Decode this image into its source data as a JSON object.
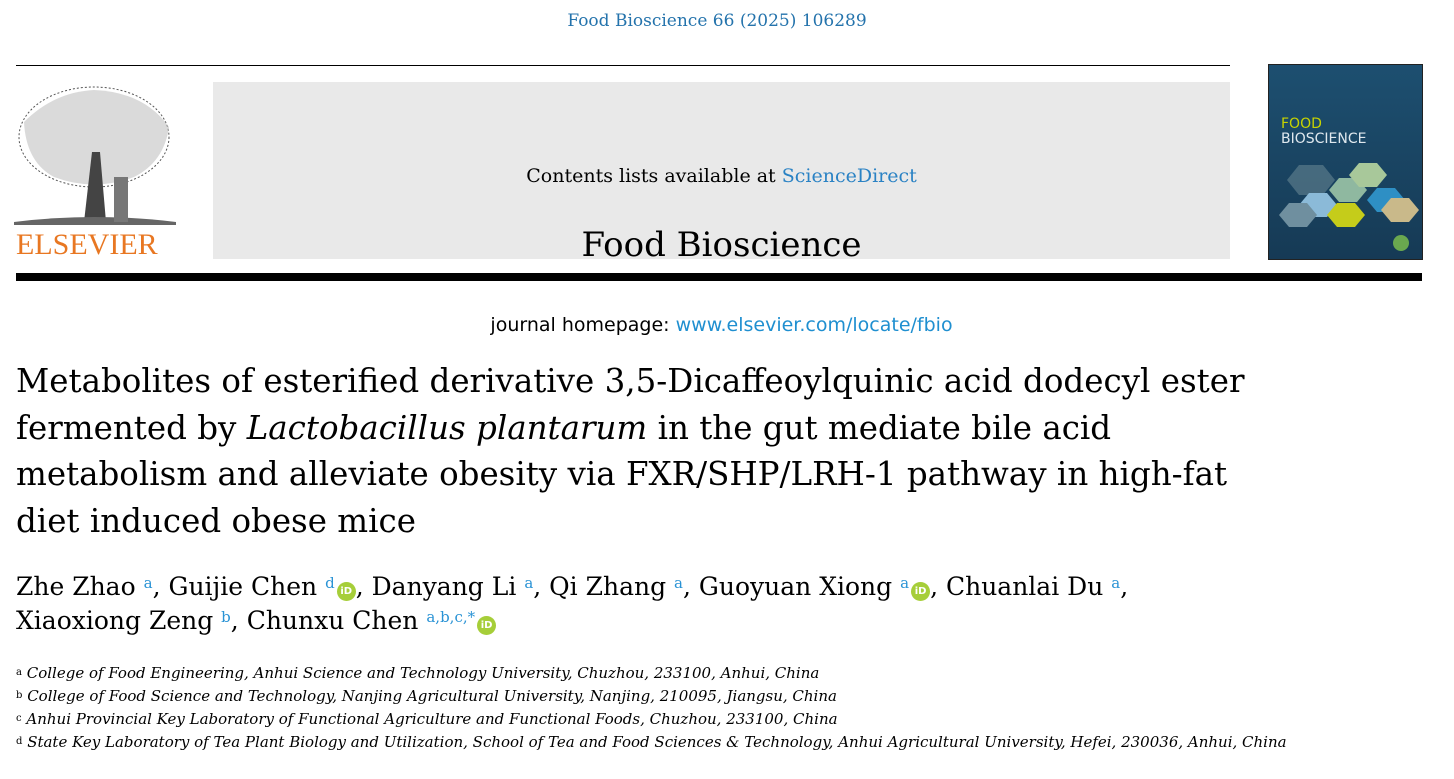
{
  "citation": "Food Bioscience 66 (2025) 106289",
  "header": {
    "contents_prefix": "Contents lists available at ",
    "contents_link": "ScienceDirect",
    "journal_name": "Food Bioscience",
    "homepage_prefix": "journal homepage: ",
    "homepage_link": "www.elsevier.com/locate/fbio",
    "publisher_logo_text": "ELSEVIER",
    "cover": {
      "line1": "FOOD",
      "line2": "BIOSCIENCE"
    }
  },
  "article": {
    "title_parts": [
      "Metabolites of esterified derivative 3,5-Dicaffeoylquinic acid dodecyl ester fermented by ",
      "Lactobacillus plantarum",
      " in the gut mediate bile acid metabolism and alleviate obesity via FXR/SHP/LRH-1 pathway in high-fat diet induced obese mice"
    ],
    "authors": [
      {
        "name": "Zhe Zhao",
        "aff": "a",
        "orcid": false
      },
      {
        "name": "Guijie Chen",
        "aff": "d",
        "orcid": true
      },
      {
        "name": "Danyang Li",
        "aff": "a",
        "orcid": false
      },
      {
        "name": "Qi Zhang",
        "aff": "a",
        "orcid": false
      },
      {
        "name": "Guoyuan Xiong",
        "aff": "a",
        "orcid": true
      },
      {
        "name": "Chuanlai Du",
        "aff": "a",
        "orcid": false
      },
      {
        "name": "Xiaoxiong Zeng",
        "aff": "b",
        "orcid": false
      },
      {
        "name": "Chunxu Chen",
        "aff": "a,b,c,*",
        "orcid": true
      }
    ],
    "orcid_label": "iD",
    "affiliations": [
      {
        "key": "a",
        "text": "College of Food Engineering, Anhui Science and Technology University, Chuzhou, 233100, Anhui, China"
      },
      {
        "key": "b",
        "text": "College of Food Science and Technology, Nanjing Agricultural University, Nanjing, 210095, Jiangsu, China"
      },
      {
        "key": "c",
        "text": "Anhui Provincial Key Laboratory of Functional Agriculture and Functional Foods, Chuzhou, 233100, China"
      },
      {
        "key": "d",
        "text": "State Key Laboratory of Tea Plant Biology and Utilization, School of Tea and Food Sciences & Technology, Anhui Agricultural University, Hefei, 230036, Anhui, China"
      }
    ]
  },
  "colors": {
    "link": "#1f8fd0",
    "elsevier_orange": "#e87722",
    "orcid_green": "#a6ce39"
  }
}
